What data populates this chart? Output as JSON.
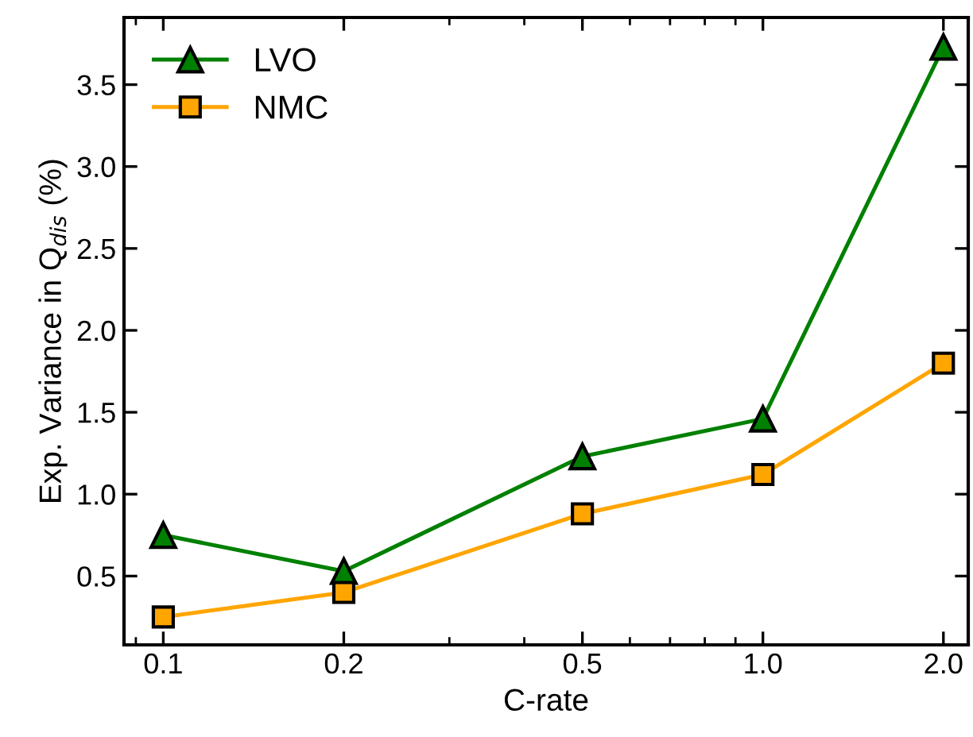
{
  "chart_data": {
    "type": "line",
    "xlabel": "C-rate",
    "ylabel": "Exp. Variance in Q$_{dis}$ (%)",
    "x": [
      0.1,
      0.2,
      0.5,
      1.0,
      2.0
    ],
    "series": [
      {
        "name": "LVO",
        "color": "#008000",
        "marker": "triangle",
        "values": [
          0.75,
          0.53,
          1.23,
          1.46,
          3.73
        ]
      },
      {
        "name": "NMC",
        "color": "#ffa500",
        "marker": "square",
        "values": [
          0.25,
          0.4,
          0.88,
          1.12,
          1.8
        ]
      }
    ],
    "log": "x",
    "xlim": [
      0.086,
      2.2
    ],
    "ylim": [
      0.08,
      3.91
    ],
    "xticks": [
      0.1,
      0.2,
      0.5,
      {
        "value": 1.0,
        "label": "1.0"
      },
      {
        "value": 2.0,
        "label": "2.0"
      }
    ],
    "yticks": [
      0.5,
      {
        "value": 1.0,
        "label": "1.0"
      },
      1.5,
      {
        "value": 2.0,
        "label": "2.0"
      },
      2.5,
      {
        "value": 3.0,
        "label": "3.0"
      },
      3.5
    ],
    "grid": false,
    "legend": "top left",
    "line_style": "solid"
  }
}
